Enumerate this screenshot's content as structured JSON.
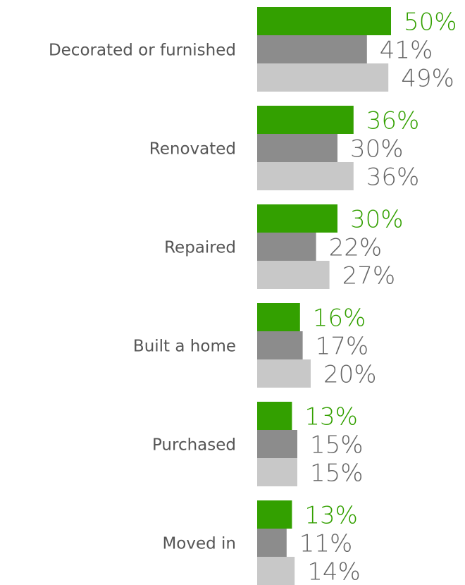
{
  "chart_data": {
    "type": "bar",
    "orientation": "horizontal",
    "categories": [
      "Decorated or furnished",
      "Renovated",
      "Repaired",
      "Built a home",
      "Purchased",
      "Moved in"
    ],
    "series": [
      {
        "color": "#33a000",
        "label_color": "#33a000",
        "values": [
          50,
          36,
          30,
          16,
          13,
          13
        ],
        "value_labels": [
          "50%",
          "36%",
          "30%",
          "16%",
          "13%",
          "13%"
        ]
      },
      {
        "color": "#8c8c8c",
        "label_color": "#666666",
        "values": [
          41,
          30,
          22,
          17,
          15,
          11
        ],
        "value_labels": [
          "41%",
          "30%",
          "22%",
          "17%",
          "15%",
          "11%"
        ]
      },
      {
        "color": "#c8c8c8",
        "label_color": "#666666",
        "values": [
          49,
          36,
          27,
          20,
          15,
          14
        ],
        "value_labels": [
          "49%",
          "36%",
          "27%",
          "20%",
          "15%",
          "14%"
        ]
      }
    ]
  }
}
